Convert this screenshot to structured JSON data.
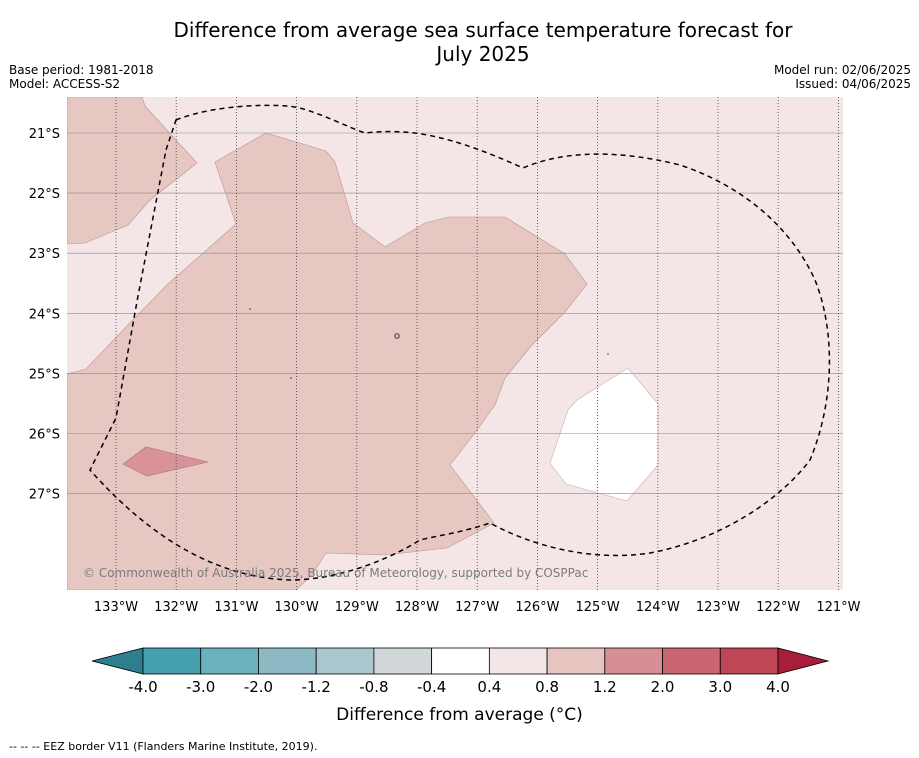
{
  "title_line1": "Difference from average sea surface temperature forecast for",
  "title_line2": "July 2025",
  "base_period": "Base period: 1981-2018",
  "model": "Model: ACCESS-S2",
  "model_run": "Model run: 02/06/2025",
  "issued": "Issued: 04/06/2025",
  "copyright": "© Commonwealth of Australia 2025, Bureau of Meteorology, supported by COSPPac",
  "footer_note": "-- -- -- EEZ border V11 (Flanders Marine Institute, 2019).",
  "map": {
    "lat_labels": [
      "21°S",
      "22°S",
      "23°S",
      "24°S",
      "25°S",
      "26°S",
      "27°S"
    ],
    "lon_labels": [
      "133°W",
      "132°W",
      "131°W",
      "130°W",
      "129°W",
      "128°W",
      "127°W",
      "126°W",
      "125°W",
      "124°W",
      "123°W",
      "122°W",
      "121°W"
    ]
  },
  "colorbar": {
    "title": "Difference from average (°C)",
    "tick_labels": [
      "-4.0",
      "-3.0",
      "-2.0",
      "-1.2",
      "-0.8",
      "-0.4",
      "0.4",
      "0.8",
      "1.2",
      "2.0",
      "3.0",
      "4.0"
    ],
    "colors": [
      "#2e7f8d",
      "#45a0b0",
      "#6ab0bd",
      "#8db9c4",
      "#a9c8cd",
      "#d2d8da",
      "#ffffff",
      "#f4e6e6",
      "#e6c5c1",
      "#d68f95",
      "#cb6670",
      "#bf4655",
      "#a71e3a"
    ]
  }
}
